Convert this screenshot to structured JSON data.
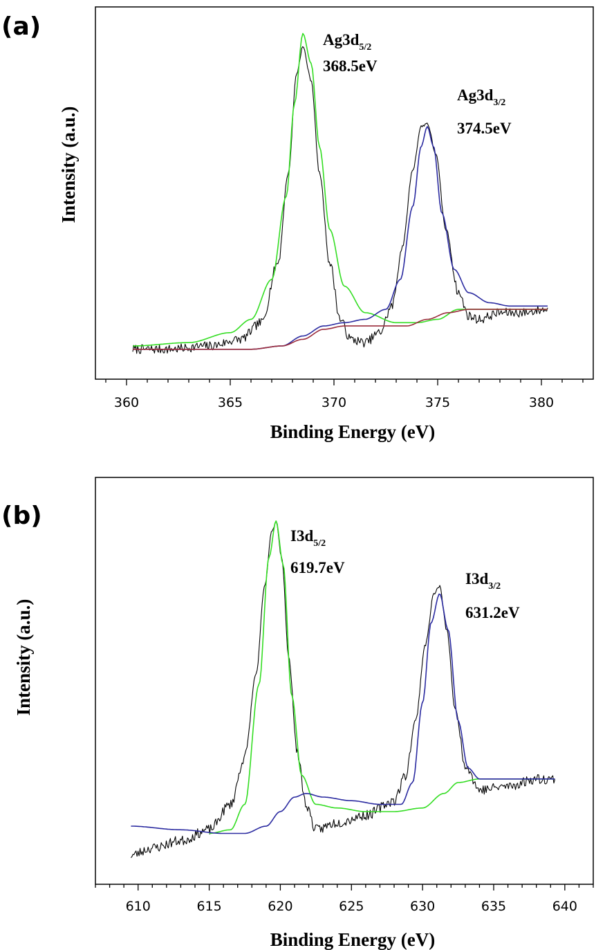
{
  "chart_data": [
    {
      "type": "line",
      "panel_label": "(a)",
      "title": "",
      "xlabel": "Binding Energy (eV)",
      "ylabel": "Intensity (a.u.)",
      "xlim": [
        358.5,
        382.5
      ],
      "ylim": [
        0,
        1.12
      ],
      "x_ticks": [
        360,
        365,
        370,
        375,
        380
      ],
      "x_tick_labels": [
        "360",
        "365",
        "370",
        "375",
        "380"
      ],
      "grid": false,
      "legend": "none",
      "annotations": [
        {
          "main": "Ag3d",
          "sub": "5/2",
          "energy": "368.5eV"
        },
        {
          "main": "Ag3d",
          "sub": "3/2",
          "energy": "374.5eV"
        }
      ],
      "series": [
        {
          "color": "#000000",
          "style": "noisy",
          "x": [
            360.3,
            362,
            364,
            365.5,
            366.5,
            367.3,
            367.8,
            368.2,
            368.5,
            368.9,
            369.3,
            369.8,
            370.3,
            370.8,
            371.5,
            372.2,
            372.8,
            373.3,
            373.8,
            374.2,
            374.5,
            374.9,
            375.4,
            376,
            376.5,
            377,
            378,
            379,
            380.3
          ],
          "y": [
            0.09,
            0.09,
            0.1,
            0.12,
            0.17,
            0.35,
            0.62,
            0.92,
            1.0,
            0.9,
            0.62,
            0.35,
            0.18,
            0.12,
            0.11,
            0.14,
            0.22,
            0.4,
            0.63,
            0.76,
            0.77,
            0.68,
            0.45,
            0.26,
            0.19,
            0.18,
            0.2,
            0.2,
            0.21
          ]
        },
        {
          "color": "#33dd22",
          "style": "smooth",
          "x": [
            360.3,
            363,
            365,
            366,
            367,
            367.7,
            368.1,
            368.5,
            368.9,
            369.3,
            369.8,
            370.5,
            371.5,
            373,
            374,
            375,
            376,
            378,
            380.3
          ],
          "y": [
            0.1,
            0.11,
            0.14,
            0.18,
            0.3,
            0.55,
            0.83,
            1.04,
            0.95,
            0.7,
            0.45,
            0.28,
            0.2,
            0.17,
            0.17,
            0.18,
            0.21,
            0.21,
            0.21
          ]
        },
        {
          "color": "#2a2aa0",
          "style": "smooth",
          "x": [
            360.3,
            366,
            367.5,
            368.5,
            369.5,
            370.5,
            371.5,
            372.5,
            373.2,
            373.8,
            374.2,
            374.5,
            374.8,
            375.2,
            375.8,
            376.5,
            377.5,
            378.5,
            380.3
          ],
          "y": [
            0.09,
            0.09,
            0.1,
            0.13,
            0.16,
            0.17,
            0.18,
            0.21,
            0.3,
            0.52,
            0.7,
            0.76,
            0.7,
            0.5,
            0.33,
            0.26,
            0.23,
            0.22,
            0.22
          ]
        },
        {
          "color": "#9a2a3a",
          "style": "smooth",
          "x": [
            360.3,
            366,
            367.5,
            368.5,
            369.5,
            370.5,
            372,
            373.5,
            374.5,
            375.5,
            376.5,
            378,
            380.3
          ],
          "y": [
            0.09,
            0.09,
            0.1,
            0.12,
            0.15,
            0.16,
            0.16,
            0.16,
            0.18,
            0.2,
            0.21,
            0.21,
            0.21
          ]
        }
      ]
    },
    {
      "type": "line",
      "panel_label": "(b)",
      "title": "",
      "xlabel": "Binding Energy (eV)",
      "ylabel": "Intensity (a.u.)",
      "xlim": [
        607,
        642
      ],
      "ylim": [
        0,
        1.12
      ],
      "x_ticks": [
        610,
        615,
        620,
        625,
        630,
        635,
        640
      ],
      "x_tick_labels": [
        "610",
        "615",
        "620",
        "625",
        "630",
        "635",
        "640"
      ],
      "grid": false,
      "legend": "none",
      "annotations": [
        {
          "main": "I3d",
          "sub": "5/2",
          "energy": "619.7eV"
        },
        {
          "main": "I3d",
          "sub": "3/2",
          "energy": "631.2eV"
        }
      ],
      "series": [
        {
          "color": "#000000",
          "style": "noisy",
          "x": [
            609.5,
            611,
            613,
            615,
            616.5,
            617.5,
            618.3,
            618.9,
            619.4,
            619.7,
            620.1,
            620.6,
            621.2,
            621.8,
            622.5,
            624,
            626,
            628,
            628.8,
            629.5,
            630.2,
            630.8,
            631.2,
            631.7,
            632.3,
            633,
            634,
            636,
            638,
            639.3
          ],
          "y": [
            0.08,
            0.1,
            0.12,
            0.15,
            0.22,
            0.35,
            0.58,
            0.82,
            0.97,
            1.0,
            0.9,
            0.62,
            0.36,
            0.22,
            0.15,
            0.17,
            0.19,
            0.23,
            0.3,
            0.45,
            0.66,
            0.8,
            0.82,
            0.7,
            0.48,
            0.33,
            0.26,
            0.27,
            0.29,
            0.29
          ]
        },
        {
          "color": "#33dd22",
          "style": "smooth",
          "x": [
            615,
            616.5,
            617.5,
            618.5,
            619.2,
            619.7,
            620.2,
            620.8,
            621.5,
            622.5,
            624,
            626,
            628,
            630,
            631.5,
            632.5,
            634,
            636,
            639.3
          ],
          "y": [
            0.14,
            0.15,
            0.22,
            0.55,
            0.9,
            1.0,
            0.88,
            0.52,
            0.3,
            0.22,
            0.21,
            0.2,
            0.2,
            0.21,
            0.25,
            0.28,
            0.29,
            0.29,
            0.29
          ]
        },
        {
          "color": "#2a2aa0",
          "style": "smooth",
          "x": [
            609.5,
            613,
            616,
            617.5,
            619,
            620,
            621,
            621.8,
            623,
            625,
            627,
            628.5,
            629.3,
            630,
            630.6,
            631.2,
            631.8,
            632.5,
            633.2,
            634,
            636,
            639.3
          ],
          "y": [
            0.16,
            0.15,
            0.14,
            0.14,
            0.16,
            0.2,
            0.24,
            0.25,
            0.24,
            0.23,
            0.22,
            0.22,
            0.28,
            0.5,
            0.72,
            0.8,
            0.7,
            0.45,
            0.32,
            0.29,
            0.29,
            0.29
          ]
        }
      ]
    }
  ]
}
